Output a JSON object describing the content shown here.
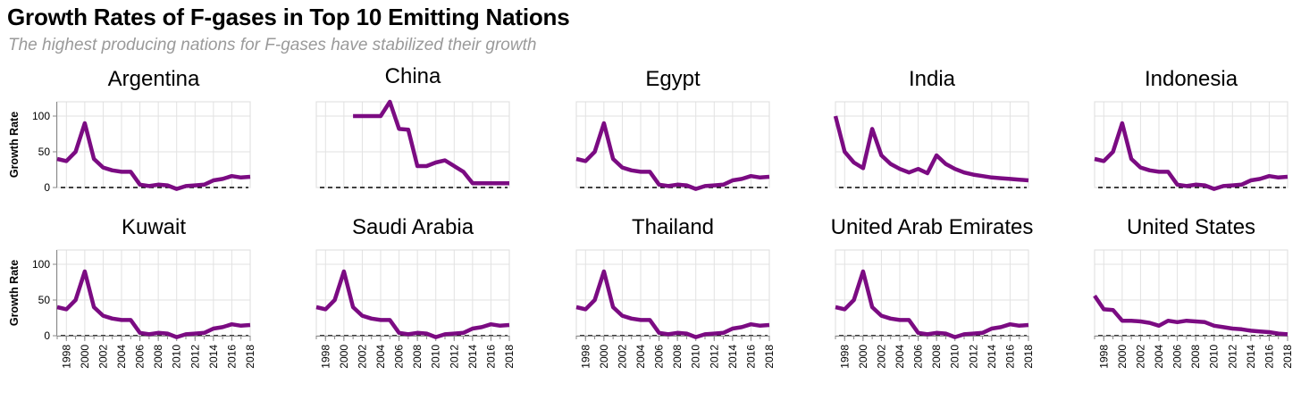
{
  "title": "Growth Rates of F-gases in Top 10 Emitting Nations",
  "subtitle": "The highest producing nations for F-gases have stabilized their growth",
  "chart_data": {
    "type": "line",
    "layout": "small-multiples",
    "ylabel": "Growth Rate",
    "xlabel": "",
    "xlim": [
      1997,
      2018
    ],
    "ylim": [
      0,
      120
    ],
    "y_ticks": [
      0,
      50,
      100
    ],
    "x_ticks": [
      1998,
      2000,
      2002,
      2004,
      2006,
      2008,
      2010,
      2012,
      2014,
      2016,
      2018
    ],
    "x_tick_labels": [
      "1998",
      "2000",
      "2002",
      "2004",
      "2006",
      "2008",
      "2010",
      "2012",
      "2014",
      "2016",
      "2018"
    ],
    "y_tick_labels": [
      "0",
      "50",
      "100"
    ],
    "reference_line": 0,
    "line_color": "#7b0b82",
    "reference_color": "#000000",
    "grid": true,
    "x": [
      1997,
      1998,
      1999,
      2000,
      2001,
      2002,
      2003,
      2004,
      2005,
      2006,
      2007,
      2008,
      2009,
      2010,
      2011,
      2012,
      2013,
      2014,
      2015,
      2016,
      2017,
      2018
    ],
    "panels": [
      {
        "name": "Argentina",
        "values": [
          40,
          37,
          50,
          90,
          40,
          28,
          24,
          22,
          22,
          4,
          2,
          4,
          3,
          -2,
          2,
          3,
          4,
          10,
          12,
          16,
          14,
          15
        ]
      },
      {
        "name": "China",
        "values": [
          null,
          null,
          null,
          null,
          100,
          100,
          100,
          100,
          120,
          82,
          81,
          30,
          30,
          35,
          38,
          30,
          22,
          6,
          6,
          6,
          6,
          6
        ]
      },
      {
        "name": "Egypt",
        "values": [
          40,
          37,
          50,
          90,
          40,
          28,
          24,
          22,
          22,
          4,
          2,
          4,
          3,
          -2,
          2,
          3,
          4,
          10,
          12,
          16,
          14,
          15
        ]
      },
      {
        "name": "India",
        "values": [
          100,
          50,
          35,
          27,
          82,
          45,
          33,
          26,
          21,
          26,
          20,
          45,
          33,
          26,
          21,
          18,
          16,
          14,
          13,
          12,
          11,
          10
        ]
      },
      {
        "name": "Indonesia",
        "values": [
          40,
          37,
          50,
          90,
          40,
          28,
          24,
          22,
          22,
          4,
          2,
          4,
          3,
          -2,
          2,
          3,
          4,
          10,
          12,
          16,
          14,
          15
        ]
      },
      {
        "name": "Kuwait",
        "values": [
          40,
          37,
          50,
          90,
          40,
          28,
          24,
          22,
          22,
          4,
          2,
          4,
          3,
          -2,
          2,
          3,
          4,
          10,
          12,
          16,
          14,
          15
        ]
      },
      {
        "name": "Saudi Arabia",
        "values": [
          40,
          37,
          50,
          90,
          40,
          28,
          24,
          22,
          22,
          4,
          2,
          4,
          3,
          -2,
          2,
          3,
          4,
          10,
          12,
          16,
          14,
          15
        ]
      },
      {
        "name": "Thailand",
        "values": [
          40,
          37,
          50,
          90,
          40,
          28,
          24,
          22,
          22,
          4,
          2,
          4,
          3,
          -2,
          2,
          3,
          4,
          10,
          12,
          16,
          14,
          15
        ]
      },
      {
        "name": "United Arab Emirates",
        "values": [
          40,
          37,
          50,
          90,
          40,
          28,
          24,
          22,
          22,
          4,
          2,
          4,
          3,
          -2,
          2,
          3,
          4,
          10,
          12,
          16,
          14,
          15
        ]
      },
      {
        "name": "United States",
        "values": [
          56,
          37,
          36,
          21,
          21,
          20,
          18,
          14,
          21,
          19,
          21,
          20,
          19,
          14,
          12,
          10,
          9,
          7,
          6,
          5,
          3,
          2
        ]
      }
    ]
  }
}
